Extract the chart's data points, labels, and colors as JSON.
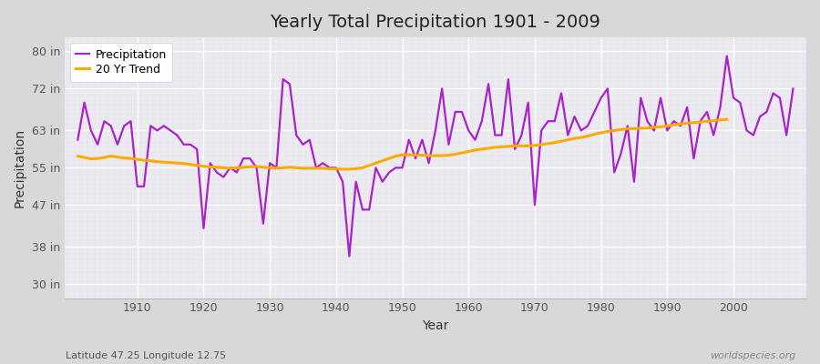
{
  "title": "Yearly Total Precipitation 1901 - 2009",
  "xlabel": "Year",
  "ylabel": "Precipitation",
  "subtitle": "Latitude 47.25 Longitude 12.75",
  "watermark": "worldspecies.org",
  "yticks": [
    30,
    38,
    47,
    55,
    63,
    72,
    80
  ],
  "ytick_labels": [
    "30 in",
    "38 in",
    "47 in",
    "55 in",
    "63 in",
    "72 in",
    "80 in"
  ],
  "ylim": [
    27,
    83
  ],
  "xlim": [
    1899,
    2011
  ],
  "bg_color": "#d8d8d8",
  "plot_bg_color": "#e8e8ee",
  "precip_color": "#aa22cc",
  "trend_color": "#ffaa00",
  "years": [
    1901,
    1902,
    1903,
    1904,
    1905,
    1906,
    1907,
    1908,
    1909,
    1910,
    1911,
    1912,
    1913,
    1914,
    1915,
    1916,
    1917,
    1918,
    1919,
    1920,
    1921,
    1922,
    1923,
    1924,
    1925,
    1926,
    1927,
    1928,
    1929,
    1930,
    1931,
    1932,
    1933,
    1934,
    1935,
    1936,
    1937,
    1938,
    1939,
    1940,
    1941,
    1942,
    1943,
    1944,
    1945,
    1946,
    1947,
    1948,
    1949,
    1950,
    1951,
    1952,
    1953,
    1954,
    1955,
    1956,
    1957,
    1958,
    1959,
    1960,
    1961,
    1962,
    1963,
    1964,
    1965,
    1966,
    1967,
    1968,
    1969,
    1970,
    1971,
    1972,
    1973,
    1974,
    1975,
    1976,
    1977,
    1978,
    1979,
    1980,
    1981,
    1982,
    1983,
    1984,
    1985,
    1986,
    1987,
    1988,
    1989,
    1990,
    1991,
    1992,
    1993,
    1994,
    1995,
    1996,
    1997,
    1998,
    1999,
    2000,
    2001,
    2002,
    2003,
    2004,
    2005,
    2006,
    2007,
    2008,
    2009
  ],
  "precip": [
    61,
    69,
    63,
    60,
    65,
    64,
    60,
    64,
    65,
    51,
    51,
    64,
    63,
    64,
    63,
    62,
    60,
    60,
    59,
    42,
    56,
    54,
    53,
    55,
    54,
    57,
    57,
    55,
    43,
    56,
    55,
    74,
    73,
    62,
    60,
    61,
    55,
    56,
    55,
    55,
    52,
    36,
    52,
    46,
    46,
    55,
    52,
    54,
    55,
    55,
    61,
    57,
    61,
    56,
    63,
    72,
    60,
    67,
    67,
    63,
    61,
    65,
    73,
    62,
    62,
    74,
    59,
    62,
    69,
    47,
    63,
    65,
    65,
    71,
    62,
    66,
    63,
    64,
    67,
    70,
    72,
    54,
    58,
    64,
    52,
    70,
    65,
    63,
    70,
    63,
    65,
    64,
    68,
    57,
    65,
    67,
    62,
    68,
    79,
    70,
    69,
    63,
    62,
    66,
    67,
    71,
    70,
    62,
    72
  ],
  "trend": [
    57.5,
    57.2,
    56.9,
    57.0,
    57.2,
    57.5,
    57.3,
    57.1,
    57.0,
    56.8,
    56.6,
    56.5,
    56.3,
    56.2,
    56.1,
    56.0,
    55.9,
    55.7,
    55.5,
    55.3,
    55.2,
    55.1,
    55.0,
    54.9,
    55.0,
    55.1,
    55.2,
    55.3,
    55.1,
    55.0,
    54.9,
    55.0,
    55.1,
    55.0,
    54.9,
    54.9,
    54.9,
    54.9,
    54.8,
    54.8,
    54.7,
    54.7,
    54.8,
    55.0,
    55.5,
    56.0,
    56.5,
    57.0,
    57.5,
    57.8,
    57.8,
    57.7,
    57.7,
    57.6,
    57.6,
    57.6,
    57.7,
    57.9,
    58.2,
    58.5,
    58.8,
    59.0,
    59.2,
    59.4,
    59.5,
    59.6,
    59.7,
    59.7,
    59.7,
    59.8,
    60.0,
    60.2,
    60.4,
    60.7,
    61.0,
    61.3,
    61.5,
    61.8,
    62.2,
    62.5,
    62.8,
    63.0,
    63.2,
    63.4,
    63.4,
    63.5,
    63.5,
    63.7,
    63.8,
    64.0,
    64.2,
    64.4,
    64.6,
    64.7,
    64.8,
    65.0,
    65.1,
    65.3,
    65.4,
    null,
    null,
    null,
    null,
    null,
    null,
    null,
    null,
    null,
    null
  ],
  "xticks": [
    1910,
    1920,
    1930,
    1940,
    1950,
    1960,
    1970,
    1980,
    1990,
    2000
  ],
  "title_fontsize": 14,
  "axis_label_fontsize": 10,
  "tick_fontsize": 9,
  "legend_fontsize": 9
}
